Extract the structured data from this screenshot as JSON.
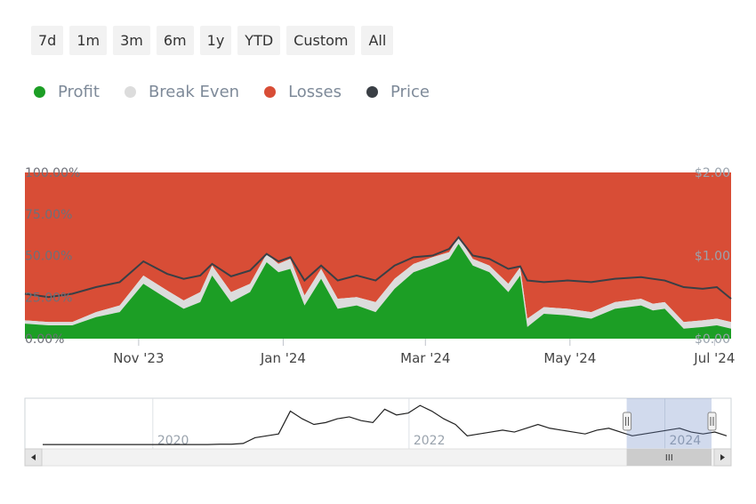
{
  "range_selector": {
    "buttons": [
      "7d",
      "1m",
      "3m",
      "6m",
      "1y",
      "YTD",
      "Custom",
      "All"
    ]
  },
  "legend": [
    {
      "label": "Profit",
      "color": "#1c9e25"
    },
    {
      "label": "Break Even",
      "color": "#dcdcdc"
    },
    {
      "label": "Losses",
      "color": "#d84d36"
    },
    {
      "label": "Price",
      "color": "#3a3f45"
    }
  ],
  "chart_data": {
    "type": "area",
    "stacking": "percent",
    "x_range": [
      "2023-09-14",
      "2024-07-08"
    ],
    "x_ticks": [
      "Nov '23",
      "Jan '24",
      "Mar '24",
      "May '24",
      "Jul '24"
    ],
    "y_left_ticks": [
      "0.00%",
      "25.00%",
      "50.00%",
      "75.00%",
      "100.00%"
    ],
    "y_left_range": [
      0,
      100
    ],
    "y_right_ticks": [
      "$0.00",
      "$1.00",
      "$2.00"
    ],
    "y_right_range": [
      0,
      2
    ],
    "x": [
      "2023-09-14",
      "2023-09-24",
      "2023-10-04",
      "2023-10-14",
      "2023-10-24",
      "2023-11-03",
      "2023-11-13",
      "2023-11-20",
      "2023-11-27",
      "2023-12-02",
      "2023-12-10",
      "2023-12-18",
      "2023-12-25",
      "2023-12-30",
      "2024-01-04",
      "2024-01-10",
      "2024-01-17",
      "2024-01-24",
      "2024-02-01",
      "2024-02-09",
      "2024-02-17",
      "2024-02-25",
      "2024-03-04",
      "2024-03-11",
      "2024-03-15",
      "2024-03-21",
      "2024-03-28",
      "2024-04-05",
      "2024-04-10",
      "2024-04-13",
      "2024-04-20",
      "2024-04-30",
      "2024-05-10",
      "2024-05-20",
      "2024-05-31",
      "2024-06-05",
      "2024-06-10",
      "2024-06-18",
      "2024-06-26",
      "2024-07-02",
      "2024-07-08"
    ],
    "series": [
      {
        "name": "Profit",
        "color": "#1c9e25",
        "values": [
          9,
          8,
          8,
          13,
          16,
          33,
          24,
          18,
          22,
          38,
          22,
          28,
          46,
          40,
          42,
          20,
          36,
          18,
          20,
          16,
          30,
          40,
          44,
          48,
          57,
          44,
          40,
          28,
          38,
          7,
          15,
          14,
          12,
          18,
          20,
          17,
          18,
          6,
          7,
          8,
          6
        ]
      },
      {
        "name": "Break Even",
        "color": "#dcdcdc",
        "values": [
          2,
          2,
          2,
          3,
          4,
          5,
          5,
          5,
          6,
          6,
          6,
          5,
          5,
          5,
          6,
          6,
          6,
          6,
          5,
          6,
          6,
          5,
          5,
          4,
          4,
          4,
          4,
          5,
          5,
          5,
          4,
          4,
          4,
          4,
          4,
          4,
          4,
          4,
          4,
          4,
          4
        ]
      },
      {
        "name": "Losses",
        "color": "#d84d36",
        "values": [
          89,
          90,
          90,
          84,
          80,
          62,
          71,
          77,
          72,
          56,
          72,
          67,
          49,
          55,
          52,
          74,
          58,
          76,
          75,
          78,
          64,
          55,
          51,
          48,
          39,
          52,
          56,
          67,
          57,
          88,
          81,
          82,
          84,
          78,
          76,
          79,
          78,
          90,
          89,
          88,
          90
        ]
      },
      {
        "name": "Price",
        "color": "#3a3f45",
        "axis": "right",
        "values": [
          0.54,
          0.5,
          0.54,
          0.62,
          0.68,
          0.93,
          0.78,
          0.72,
          0.76,
          0.9,
          0.75,
          0.82,
          1.02,
          0.93,
          0.98,
          0.7,
          0.88,
          0.7,
          0.76,
          0.7,
          0.88,
          0.98,
          1.0,
          1.08,
          1.22,
          1.0,
          0.96,
          0.84,
          0.87,
          0.7,
          0.68,
          0.7,
          0.68,
          0.72,
          0.74,
          0.72,
          0.7,
          0.62,
          0.6,
          0.62,
          0.48
        ]
      }
    ]
  },
  "navigator": {
    "labels": [
      "2020",
      "2022",
      "2024"
    ],
    "price_history": [
      0.02,
      0.02,
      0.02,
      0.02,
      0.02,
      0.02,
      0.02,
      0.02,
      0.02,
      0.02,
      0.02,
      0.02,
      0.02,
      0.02,
      0.02,
      0.03,
      0.03,
      0.05,
      0.2,
      0.25,
      0.3,
      0.9,
      0.7,
      0.55,
      0.6,
      0.7,
      0.75,
      0.65,
      0.6,
      0.95,
      0.8,
      0.85,
      1.05,
      0.9,
      0.7,
      0.55,
      0.25,
      0.3,
      0.35,
      0.4,
      0.35,
      0.45,
      0.55,
      0.45,
      0.4,
      0.35,
      0.3,
      0.4,
      0.45,
      0.35,
      0.25,
      0.3,
      0.35,
      0.4,
      0.45,
      0.35,
      0.3,
      0.35,
      0.25
    ],
    "x_range": [
      "2019-01-01",
      "2024-07-08"
    ],
    "selected_range": [
      "2023-09-14",
      "2024-07-08"
    ]
  }
}
